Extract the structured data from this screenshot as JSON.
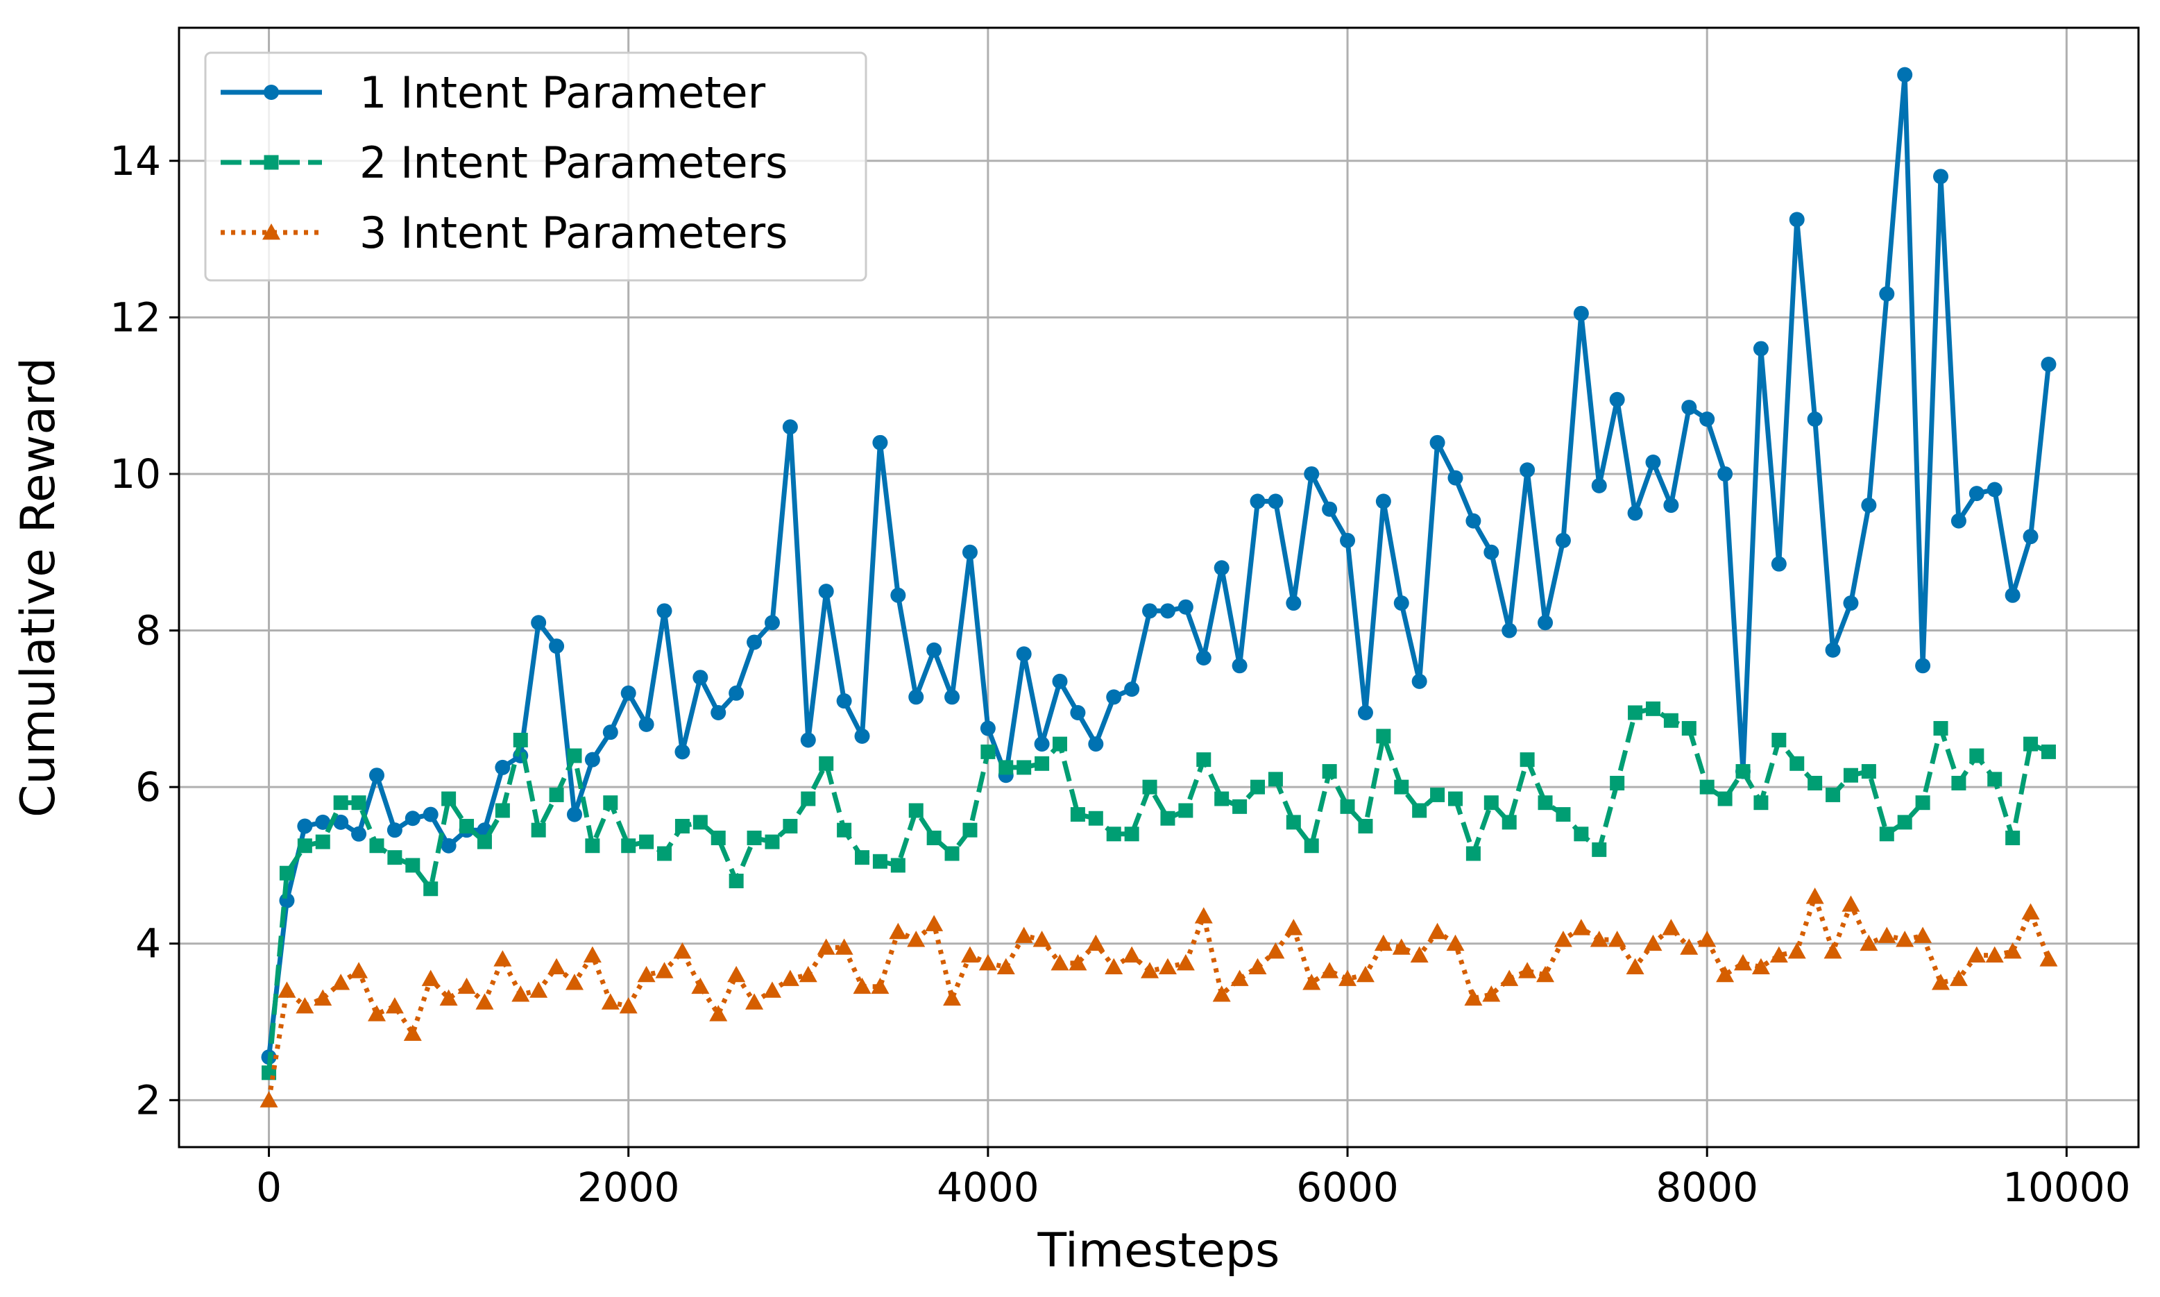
{
  "chart_data": {
    "type": "line",
    "title": "",
    "xlabel": "Timesteps",
    "ylabel": "Cumulative Reward",
    "xlim": [
      -500,
      10400
    ],
    "ylim": [
      1.4,
      15.7
    ],
    "x_ticks": [
      0,
      2000,
      4000,
      6000,
      8000,
      10000
    ],
    "y_ticks": [
      2,
      4,
      6,
      8,
      10,
      12,
      14
    ],
    "grid": true,
    "legend_position": "top-left",
    "x_start": 0,
    "x_step": 100,
    "series": [
      {
        "name": "1 Intent Parameter",
        "color": "#0072b2",
        "line_style": "solid",
        "marker": "circle",
        "values": [
          2.55,
          4.55,
          5.5,
          5.55,
          5.55,
          5.4,
          6.15,
          5.45,
          5.6,
          5.65,
          5.25,
          5.45,
          5.45,
          6.25,
          6.4,
          8.1,
          7.8,
          5.65,
          6.35,
          6.7,
          7.2,
          6.8,
          8.25,
          6.45,
          7.4,
          6.95,
          7.2,
          7.85,
          8.1,
          10.6,
          6.6,
          8.5,
          7.1,
          6.65,
          10.4,
          8.45,
          7.15,
          7.75,
          7.15,
          9.0,
          6.75,
          6.15,
          7.7,
          6.55,
          7.35,
          6.95,
          6.55,
          7.15,
          7.25,
          8.25,
          8.25,
          8.3,
          7.65,
          8.8,
          7.55,
          9.65,
          9.65,
          8.35,
          10.0,
          9.55,
          9.15,
          6.95,
          9.65,
          8.35,
          7.35,
          10.4,
          9.95,
          9.4,
          9.0,
          8.0,
          10.05,
          8.1,
          9.15,
          12.05,
          9.85,
          10.95,
          9.5,
          10.15,
          9.6,
          10.85,
          10.7,
          10.0,
          6.2,
          11.6,
          8.85,
          13.25,
          10.7,
          7.75,
          8.35,
          9.6,
          12.3,
          15.1,
          7.55,
          13.8,
          9.4,
          9.75,
          9.8,
          8.45,
          9.2,
          11.4
        ]
      },
      {
        "name": "2 Intent Parameters",
        "color": "#009e73",
        "line_style": "dashed",
        "marker": "square",
        "values": [
          2.35,
          4.9,
          5.25,
          5.3,
          5.8,
          5.8,
          5.25,
          5.1,
          5.0,
          4.7,
          5.85,
          5.5,
          5.3,
          5.7,
          6.6,
          5.45,
          5.9,
          6.4,
          5.25,
          5.8,
          5.25,
          5.3,
          5.15,
          5.5,
          5.55,
          5.35,
          4.8,
          5.35,
          5.3,
          5.5,
          5.85,
          6.3,
          5.45,
          5.1,
          5.05,
          5.0,
          5.7,
          5.35,
          5.15,
          5.45,
          6.45,
          6.25,
          6.25,
          6.3,
          6.55,
          5.65,
          5.6,
          5.4,
          5.4,
          6.0,
          5.6,
          5.7,
          6.35,
          5.85,
          5.75,
          6.0,
          6.1,
          5.55,
          5.25,
          6.2,
          5.75,
          5.5,
          6.65,
          6.0,
          5.7,
          5.9,
          5.85,
          5.15,
          5.8,
          5.55,
          6.35,
          5.8,
          5.65,
          5.4,
          5.2,
          6.05,
          6.95,
          7.0,
          6.85,
          6.75,
          6.0,
          5.85,
          6.2,
          5.8,
          6.6,
          6.3,
          6.05,
          5.9,
          6.15,
          6.2,
          5.4,
          5.55,
          5.8,
          6.75,
          6.05,
          6.4,
          6.1,
          5.35,
          6.55,
          6.45
        ]
      },
      {
        "name": "3 Intent Parameters",
        "color": "#d55e00",
        "line_style": "dotted",
        "marker": "triangle",
        "values": [
          2.0,
          3.4,
          3.2,
          3.3,
          3.5,
          3.65,
          3.1,
          3.2,
          2.85,
          3.55,
          3.3,
          3.45,
          3.25,
          3.8,
          3.35,
          3.4,
          3.7,
          3.5,
          3.85,
          3.25,
          3.2,
          3.6,
          3.65,
          3.9,
          3.45,
          3.1,
          3.6,
          3.25,
          3.4,
          3.55,
          3.6,
          3.95,
          3.95,
          3.45,
          3.45,
          4.15,
          4.05,
          4.25,
          3.3,
          3.85,
          3.75,
          3.7,
          4.1,
          4.05,
          3.75,
          3.75,
          4.0,
          3.7,
          3.85,
          3.65,
          3.7,
          3.75,
          4.35,
          3.35,
          3.55,
          3.7,
          3.9,
          4.2,
          3.5,
          3.65,
          3.55,
          3.6,
          4.0,
          3.95,
          3.85,
          4.15,
          4.0,
          3.3,
          3.35,
          3.55,
          3.65,
          3.6,
          4.05,
          4.2,
          4.05,
          4.05,
          3.7,
          4.0,
          4.2,
          3.95,
          4.05,
          3.6,
          3.75,
          3.7,
          3.85,
          3.9,
          4.6,
          3.9,
          4.5,
          4.0,
          4.1,
          4.05,
          4.1,
          3.5,
          3.55,
          3.85,
          3.85,
          3.9,
          4.4,
          3.8
        ]
      }
    ]
  }
}
